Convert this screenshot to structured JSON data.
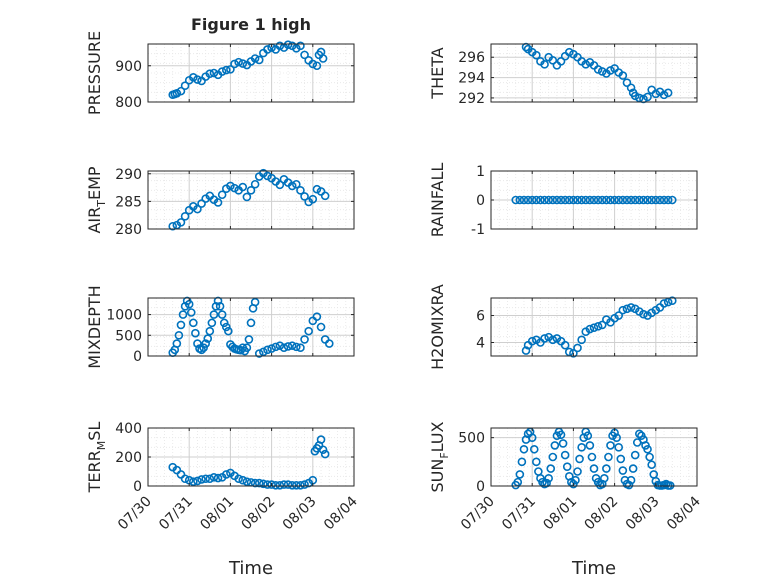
{
  "figure": {
    "title": "Figure 1 high"
  },
  "colors": {
    "marker": "#0072bd",
    "axis": "#262626",
    "grid": "#cfcfcf",
    "minor_grid": "#e6e6e6"
  },
  "x_axis": {
    "label": "Time",
    "ticks": [
      "07/30",
      "07/31",
      "08/01",
      "08/02",
      "08/03",
      "08/04"
    ]
  },
  "chart_data": [
    {
      "type": "scatter",
      "name": "pressure",
      "ylabel": "PRESSURE",
      "yrange": [
        800,
        960
      ],
      "yticks": [
        800,
        900
      ],
      "yticklabels": [
        "800",
        "900"
      ],
      "grid": true,
      "x": [
        0.6,
        0.65,
        0.7,
        0.8,
        0.9,
        1.0,
        1.1,
        1.2,
        1.3,
        1.4,
        1.5,
        1.6,
        1.7,
        1.8,
        1.9,
        2.0,
        2.1,
        2.2,
        2.3,
        2.4,
        2.5,
        2.6,
        2.7,
        2.8,
        2.9,
        3.0,
        3.1,
        3.2,
        3.3,
        3.4,
        3.5,
        3.6,
        3.7,
        3.8,
        3.9,
        4.0,
        4.1,
        4.15,
        4.2,
        4.25
      ],
      "y": [
        820,
        822,
        824,
        830,
        845,
        860,
        868,
        862,
        858,
        870,
        878,
        880,
        875,
        884,
        888,
        890,
        905,
        910,
        906,
        902,
        912,
        920,
        916,
        935,
        945,
        950,
        945,
        955,
        950,
        958,
        955,
        948,
        955,
        930,
        915,
        905,
        900,
        930,
        938,
        920
      ]
    },
    {
      "type": "scatter",
      "name": "theta",
      "ylabel": "THETA",
      "yrange": [
        291.6,
        297.3
      ],
      "yticks": [
        292,
        294,
        296
      ],
      "yticklabels": [
        "292",
        "294",
        "296"
      ],
      "grid": true,
      "x": [
        0.85,
        0.9,
        1.0,
        1.1,
        1.2,
        1.3,
        1.4,
        1.5,
        1.6,
        1.7,
        1.8,
        1.9,
        2.0,
        2.1,
        2.2,
        2.3,
        2.4,
        2.5,
        2.6,
        2.7,
        2.8,
        2.9,
        3.0,
        3.1,
        3.2,
        3.3,
        3.4,
        3.45,
        3.5,
        3.6,
        3.7,
        3.8,
        3.9,
        4.0,
        4.1,
        4.2,
        4.3
      ],
      "y": [
        297.0,
        296.8,
        296.5,
        296.2,
        295.6,
        295.3,
        296.0,
        295.7,
        295.2,
        295.6,
        296.1,
        296.5,
        296.3,
        296.0,
        295.6,
        295.3,
        295.5,
        295.2,
        294.8,
        294.6,
        294.4,
        294.7,
        294.9,
        294.5,
        294.2,
        293.5,
        293.0,
        292.5,
        292.2,
        292.0,
        291.9,
        292.1,
        292.8,
        292.4,
        292.6,
        292.3,
        292.5
      ]
    },
    {
      "type": "scatter",
      "name": "air_temp",
      "ylabel": "AIR_TEMP",
      "yrange": [
        280,
        290.5
      ],
      "yticks": [
        280,
        285,
        290
      ],
      "yticklabels": [
        "280",
        "285",
        "290"
      ],
      "grid": true,
      "x": [
        0.6,
        0.7,
        0.8,
        0.9,
        1.0,
        1.1,
        1.2,
        1.3,
        1.4,
        1.5,
        1.6,
        1.7,
        1.8,
        1.9,
        2.0,
        2.1,
        2.2,
        2.3,
        2.4,
        2.5,
        2.6,
        2.7,
        2.8,
        2.9,
        3.0,
        3.1,
        3.2,
        3.3,
        3.4,
        3.5,
        3.6,
        3.7,
        3.8,
        3.9,
        4.0,
        4.1,
        4.2,
        4.3
      ],
      "y": [
        280.5,
        280.7,
        281.2,
        282.3,
        283.4,
        284.1,
        283.6,
        284.6,
        285.5,
        286.0,
        285.3,
        284.8,
        286.2,
        287.3,
        287.8,
        287.4,
        287.0,
        287.6,
        285.8,
        287.0,
        288.1,
        289.5,
        290.1,
        289.6,
        289.2,
        288.6,
        288.0,
        289.0,
        288.4,
        287.8,
        288.1,
        287.0,
        285.9,
        284.9,
        285.4,
        287.2,
        286.8,
        286.0
      ]
    },
    {
      "type": "scatter",
      "name": "rainfall",
      "ylabel": "RAINFALL",
      "yrange": [
        -1,
        1
      ],
      "yticks": [
        -1,
        0,
        1
      ],
      "yticklabels": [
        "-1",
        "0",
        "1"
      ],
      "grid": true,
      "x": [
        0.6,
        0.7,
        0.8,
        0.9,
        1.0,
        1.1,
        1.2,
        1.3,
        1.4,
        1.5,
        1.6,
        1.7,
        1.8,
        1.9,
        2.0,
        2.1,
        2.2,
        2.3,
        2.4,
        2.5,
        2.6,
        2.7,
        2.8,
        2.9,
        3.0,
        3.1,
        3.2,
        3.3,
        3.4,
        3.5,
        3.6,
        3.7,
        3.8,
        3.9,
        4.0,
        4.1,
        4.2,
        4.3,
        4.4
      ],
      "y": [
        0,
        0,
        0,
        0,
        0,
        0,
        0,
        0,
        0,
        0,
        0,
        0,
        0,
        0,
        0,
        0,
        0,
        0,
        0,
        0,
        0,
        0,
        0,
        0,
        0,
        0,
        0,
        0,
        0,
        0,
        0,
        0,
        0,
        0,
        0,
        0,
        0,
        0,
        0
      ]
    },
    {
      "type": "scatter",
      "name": "mixdepth",
      "ylabel": "MIXDEPTH",
      "yrange": [
        0,
        1400
      ],
      "yticks": [
        0,
        500,
        1000
      ],
      "yticklabels": [
        "0",
        "500",
        "1000"
      ],
      "grid": true,
      "x": [
        0.6,
        0.65,
        0.7,
        0.75,
        0.8,
        0.85,
        0.9,
        0.95,
        1.0,
        1.05,
        1.1,
        1.15,
        1.2,
        1.25,
        1.3,
        1.35,
        1.4,
        1.45,
        1.5,
        1.55,
        1.6,
        1.65,
        1.7,
        1.75,
        1.8,
        1.85,
        1.9,
        1.95,
        2.0,
        2.05,
        2.1,
        2.15,
        2.2,
        2.25,
        2.3,
        2.35,
        2.4,
        2.45,
        2.5,
        2.55,
        2.6,
        2.7,
        2.8,
        2.9,
        3.0,
        3.1,
        3.2,
        3.3,
        3.4,
        3.5,
        3.6,
        3.7,
        3.8,
        3.9,
        4.0,
        4.1,
        4.2,
        4.3,
        4.4
      ],
      "y": [
        80,
        150,
        300,
        500,
        750,
        1000,
        1200,
        1330,
        1250,
        1050,
        800,
        550,
        300,
        180,
        150,
        200,
        300,
        420,
        600,
        800,
        1000,
        1200,
        1330,
        1200,
        1000,
        800,
        700,
        600,
        280,
        220,
        180,
        160,
        150,
        140,
        200,
        120,
        200,
        400,
        800,
        1150,
        1300,
        60,
        100,
        150,
        180,
        220,
        250,
        200,
        230,
        250,
        220,
        200,
        400,
        600,
        850,
        950,
        700,
        400,
        300
      ]
    },
    {
      "type": "scatter",
      "name": "h2o_mixing_ratio",
      "ylabel": "H2OMIXRA",
      "yrange": [
        3,
        7.3
      ],
      "yticks": [
        4,
        6
      ],
      "yticklabels": [
        "4",
        "6"
      ],
      "grid": true,
      "x": [
        0.85,
        0.9,
        1.0,
        1.1,
        1.2,
        1.3,
        1.4,
        1.5,
        1.6,
        1.7,
        1.8,
        1.9,
        2.0,
        2.1,
        2.2,
        2.3,
        2.4,
        2.5,
        2.6,
        2.7,
        2.8,
        2.9,
        3.0,
        3.1,
        3.2,
        3.3,
        3.4,
        3.5,
        3.6,
        3.7,
        3.8,
        3.9,
        4.0,
        4.1,
        4.2,
        4.3,
        4.4
      ],
      "y": [
        3.4,
        3.8,
        4.1,
        4.2,
        4.0,
        4.3,
        4.4,
        4.2,
        4.3,
        4.1,
        3.8,
        3.3,
        3.2,
        3.6,
        4.2,
        4.8,
        5.0,
        5.1,
        5.2,
        5.3,
        5.7,
        5.5,
        5.8,
        6.0,
        6.4,
        6.5,
        6.6,
        6.5,
        6.3,
        6.1,
        6.0,
        6.2,
        6.4,
        6.6,
        6.9,
        7.0,
        7.1
      ]
    },
    {
      "type": "scatter",
      "name": "terrain_msl",
      "ylabel": "TERR_MSL",
      "yrange": [
        0,
        400
      ],
      "yticks": [
        0,
        200,
        400
      ],
      "yticklabels": [
        "0",
        "200",
        "400"
      ],
      "grid": true,
      "x": [
        0.6,
        0.7,
        0.8,
        0.9,
        1.0,
        1.1,
        1.2,
        1.3,
        1.4,
        1.5,
        1.6,
        1.7,
        1.8,
        1.9,
        2.0,
        2.1,
        2.2,
        2.3,
        2.4,
        2.5,
        2.6,
        2.7,
        2.8,
        2.9,
        3.0,
        3.1,
        3.2,
        3.3,
        3.4,
        3.5,
        3.6,
        3.7,
        3.8,
        3.9,
        4.0,
        4.05,
        4.1,
        4.15,
        4.2,
        4.25,
        4.3
      ],
      "y": [
        130,
        110,
        80,
        50,
        40,
        30,
        35,
        45,
        50,
        50,
        60,
        55,
        60,
        80,
        90,
        70,
        50,
        40,
        30,
        25,
        20,
        20,
        15,
        10,
        10,
        5,
        5,
        10,
        10,
        5,
        5,
        5,
        10,
        20,
        40,
        240,
        260,
        280,
        320,
        250,
        220
      ]
    },
    {
      "type": "scatter",
      "name": "sun_flux",
      "ylabel": "SUN_FLUX",
      "yrange": [
        0,
        600
      ],
      "yticks": [
        0,
        500
      ],
      "yticklabels": [
        "0",
        "500"
      ],
      "grid": true,
      "x": [
        0.6,
        0.65,
        0.7,
        0.75,
        0.8,
        0.85,
        0.9,
        0.95,
        1.0,
        1.05,
        1.1,
        1.15,
        1.2,
        1.25,
        1.3,
        1.35,
        1.4,
        1.45,
        1.5,
        1.55,
        1.6,
        1.65,
        1.7,
        1.75,
        1.8,
        1.85,
        1.9,
        1.95,
        2.0,
        2.05,
        2.1,
        2.15,
        2.2,
        2.25,
        2.3,
        2.35,
        2.4,
        2.45,
        2.5,
        2.55,
        2.6,
        2.65,
        2.7,
        2.75,
        2.8,
        2.85,
        2.9,
        2.95,
        3.0,
        3.05,
        3.1,
        3.15,
        3.2,
        3.25,
        3.3,
        3.35,
        3.4,
        3.45,
        3.5,
        3.55,
        3.6,
        3.65,
        3.7,
        3.75,
        3.8,
        3.85,
        3.9,
        3.95,
        4.0,
        4.05,
        4.1,
        4.15,
        4.2,
        4.25,
        4.3,
        4.35
      ],
      "y": [
        10,
        40,
        120,
        250,
        380,
        480,
        540,
        560,
        500,
        380,
        250,
        150,
        80,
        40,
        20,
        30,
        80,
        180,
        300,
        420,
        520,
        560,
        530,
        440,
        320,
        200,
        100,
        40,
        20,
        60,
        150,
        280,
        400,
        500,
        560,
        520,
        420,
        300,
        180,
        80,
        40,
        10,
        20,
        80,
        180,
        300,
        420,
        520,
        550,
        500,
        400,
        280,
        160,
        60,
        20,
        10,
        60,
        180,
        320,
        450,
        540,
        520,
        480,
        420,
        380,
        300,
        220,
        120,
        50,
        10,
        5,
        5,
        10,
        20,
        5,
        5
      ]
    }
  ]
}
